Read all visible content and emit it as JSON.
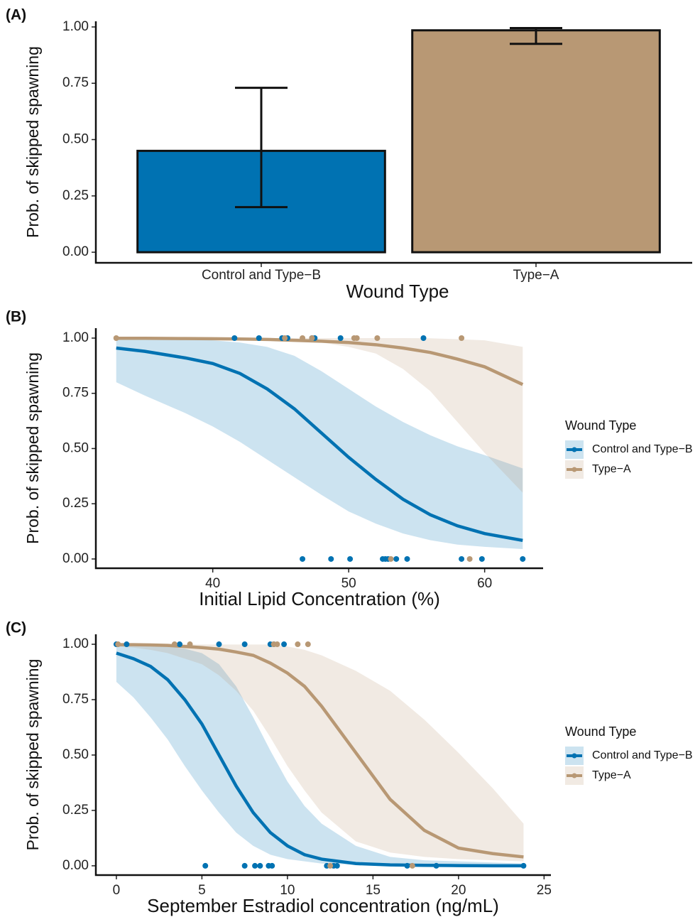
{
  "chart_data": [
    {
      "type": "bar",
      "panel_label": "(A)",
      "ylabel": "Prob. of skipped spawning",
      "xlabel": "Wound Type",
      "categories": [
        "Control and Type−B",
        "Type−A"
      ],
      "values": [
        0.45,
        0.985
      ],
      "error_low": [
        0.2,
        0.925
      ],
      "error_high": [
        0.73,
        0.995
      ],
      "colors": [
        "#0072b2",
        "#b89874"
      ],
      "ylim": [
        -0.047,
        1.025
      ],
      "yticks": [
        {
          "value": 0,
          "label": "0.00"
        },
        {
          "value": 0.25,
          "label": "0.25"
        },
        {
          "value": 0.5,
          "label": "0.50"
        },
        {
          "value": 0.75,
          "label": "0.75"
        },
        {
          "value": 1,
          "label": "1.00"
        }
      ]
    },
    {
      "type": "line",
      "panel_label": "(B)",
      "ylabel": "Prob. of skipped spawning",
      "xlabel": "Initial Lipid Concentration (%)",
      "legend_title": "Wound Type",
      "x": [
        32.9,
        35,
        38,
        40,
        42,
        44,
        46,
        48,
        50,
        52,
        54,
        56,
        58,
        60,
        62.8
      ],
      "series": [
        {
          "name": "Control and Type−B",
          "color": "#0072b2",
          "values": [
            0.955,
            0.94,
            0.91,
            0.885,
            0.84,
            0.77,
            0.68,
            0.57,
            0.46,
            0.36,
            0.27,
            0.2,
            0.15,
            0.115,
            0.084
          ],
          "upper": [
            0.995,
            0.995,
            0.993,
            0.99,
            0.98,
            0.96,
            0.92,
            0.85,
            0.77,
            0.69,
            0.62,
            0.56,
            0.51,
            0.47,
            0.41
          ],
          "lower": [
            0.8,
            0.74,
            0.66,
            0.6,
            0.53,
            0.45,
            0.37,
            0.29,
            0.215,
            0.16,
            0.115,
            0.085,
            0.065,
            0.055,
            0.045
          ],
          "points_x": [
            41.6,
            43.4,
            45.1,
            45.5,
            47.3,
            47.5,
            49.4,
            55.5,
            46.6,
            48.7,
            50.1,
            52.5,
            52.7,
            52.9,
            53.5,
            54.3,
            58.3,
            59.8,
            62.8
          ],
          "points_y": [
            1,
            1,
            1,
            1,
            1,
            1,
            1,
            1,
            0,
            0,
            0,
            0,
            0,
            0,
            0,
            0,
            0,
            0,
            0
          ]
        },
        {
          "name": "Type−A",
          "color": "#b89874",
          "values": [
            0.999,
            0.999,
            0.998,
            0.997,
            0.996,
            0.994,
            0.99,
            0.986,
            0.98,
            0.97,
            0.955,
            0.935,
            0.905,
            0.87,
            0.79
          ],
          "upper": [
            1,
            1,
            1,
            1,
            1,
            1,
            1,
            1,
            1,
            1,
            1,
            0.999,
            0.995,
            0.99,
            0.96
          ],
          "lower": [
            0.995,
            0.995,
            0.995,
            0.995,
            0.995,
            0.995,
            0.99,
            0.98,
            0.96,
            0.93,
            0.86,
            0.76,
            0.62,
            0.48,
            0.3
          ],
          "points_x": [
            32.9,
            45.3,
            46.6,
            47.3,
            50.4,
            50.6,
            52.1,
            58.3,
            53.1,
            58.9
          ],
          "points_y": [
            1,
            1,
            1,
            1,
            1,
            1,
            1,
            1,
            0,
            0
          ]
        }
      ],
      "xlim": [
        31.4,
        64.3
      ],
      "xticks": [
        40,
        50,
        60
      ],
      "ylim": [
        -0.042,
        1.045
      ],
      "yticks": [
        {
          "value": 0,
          "label": "0.00"
        },
        {
          "value": 0.25,
          "label": "0.25"
        },
        {
          "value": 0.5,
          "label": "0.50"
        },
        {
          "value": 0.75,
          "label": "0.75"
        },
        {
          "value": 1,
          "label": "1.00"
        }
      ]
    },
    {
      "type": "line",
      "panel_label": "(C)",
      "ylabel": "Prob. of skipped spawning",
      "xlabel": "September Estradiol concentration (ng/mL)",
      "legend_title": "Wound Type",
      "x": [
        0,
        1,
        2,
        3,
        4,
        5,
        6,
        7,
        8,
        9,
        10,
        11,
        12,
        14,
        16,
        18,
        20,
        22,
        23.8
      ],
      "series": [
        {
          "name": "Control and Type−B",
          "color": "#0072b2",
          "values": [
            0.96,
            0.935,
            0.9,
            0.84,
            0.75,
            0.64,
            0.5,
            0.36,
            0.24,
            0.15,
            0.09,
            0.05,
            0.03,
            0.01,
            0.004,
            0.002,
            0.001,
            0,
            0
          ],
          "upper": [
            0.995,
            0.995,
            0.993,
            0.99,
            0.98,
            0.96,
            0.91,
            0.81,
            0.67,
            0.52,
            0.38,
            0.27,
            0.19,
            0.09,
            0.04,
            0.025,
            0.02,
            0.015,
            0.01
          ],
          "lower": [
            0.83,
            0.76,
            0.67,
            0.57,
            0.45,
            0.34,
            0.24,
            0.15,
            0.09,
            0.05,
            0.03,
            0.02,
            0.01,
            0.005,
            0,
            0,
            0,
            0,
            0
          ],
          "points_x": [
            0,
            0.6,
            3.7,
            6,
            7.5,
            9,
            9.2,
            9.8,
            5.2,
            7.5,
            8.1,
            8.4,
            8.9,
            9.1,
            12.3,
            12.7,
            12.9,
            17,
            18.7,
            23.8
          ],
          "points_y": [
            1,
            1,
            1,
            1,
            1,
            1,
            1,
            1,
            0,
            0,
            0,
            0,
            0,
            0,
            0,
            0,
            0,
            0,
            0,
            0
          ]
        },
        {
          "name": "Type−A",
          "color": "#b89874",
          "values": [
            0.998,
            0.998,
            0.997,
            0.995,
            0.99,
            0.985,
            0.978,
            0.965,
            0.95,
            0.915,
            0.87,
            0.81,
            0.72,
            0.51,
            0.3,
            0.16,
            0.08,
            0.055,
            0.04
          ],
          "upper": [
            0.999,
            0.999,
            0.999,
            0.999,
            0.999,
            0.999,
            0.999,
            0.999,
            0.999,
            0.999,
            0.99,
            0.975,
            0.95,
            0.88,
            0.79,
            0.66,
            0.51,
            0.35,
            0.19
          ],
          "lower": [
            0.99,
            0.985,
            0.975,
            0.96,
            0.935,
            0.91,
            0.86,
            0.79,
            0.7,
            0.58,
            0.45,
            0.34,
            0.24,
            0.11,
            0.06,
            0.04,
            0.03,
            0.025,
            0.02
          ],
          "points_x": [
            0.1,
            3.4,
            4.3,
            9.2,
            9.4,
            10.6,
            11.2,
            12.5,
            17.3
          ],
          "points_y": [
            1,
            1,
            1,
            1,
            1,
            1,
            1,
            0,
            0
          ]
        }
      ],
      "xlim": [
        -1.2,
        25.4
      ],
      "xticks": [
        0,
        5,
        10,
        15,
        20,
        25
      ],
      "ylim": [
        -0.042,
        1.045
      ],
      "yticks": [
        {
          "value": 0,
          "label": "0.00"
        },
        {
          "value": 0.25,
          "label": "0.25"
        },
        {
          "value": 0.5,
          "label": "0.50"
        },
        {
          "value": 0.75,
          "label": "0.75"
        },
        {
          "value": 1,
          "label": "1.00"
        }
      ]
    }
  ]
}
